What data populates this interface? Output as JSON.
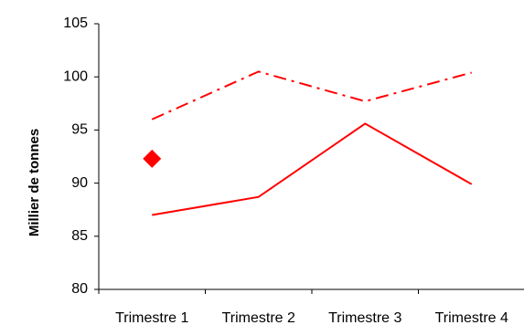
{
  "chart_data": {
    "type": "line",
    "y_label": "Millier de tonnes",
    "categories": [
      "Trimestre 1",
      "Trimestre 2",
      "Trimestre 3",
      "Trimestre 4"
    ],
    "series": [
      {
        "color": "#ff0000",
        "style": "solid",
        "values": [
          87.0,
          88.7,
          95.6,
          89.9
        ]
      },
      {
        "color": "#ff0000",
        "style": "dashdot",
        "values": [
          96.0,
          100.5,
          97.7,
          100.4
        ]
      },
      {
        "color": "#ff0000",
        "style": "marker",
        "marker": "diamond",
        "values": [
          92.3,
          null,
          null,
          null
        ]
      }
    ],
    "ylim": [
      80,
      105
    ],
    "yticks": [
      80,
      85,
      90,
      95,
      100,
      105
    ],
    "grid": false
  }
}
